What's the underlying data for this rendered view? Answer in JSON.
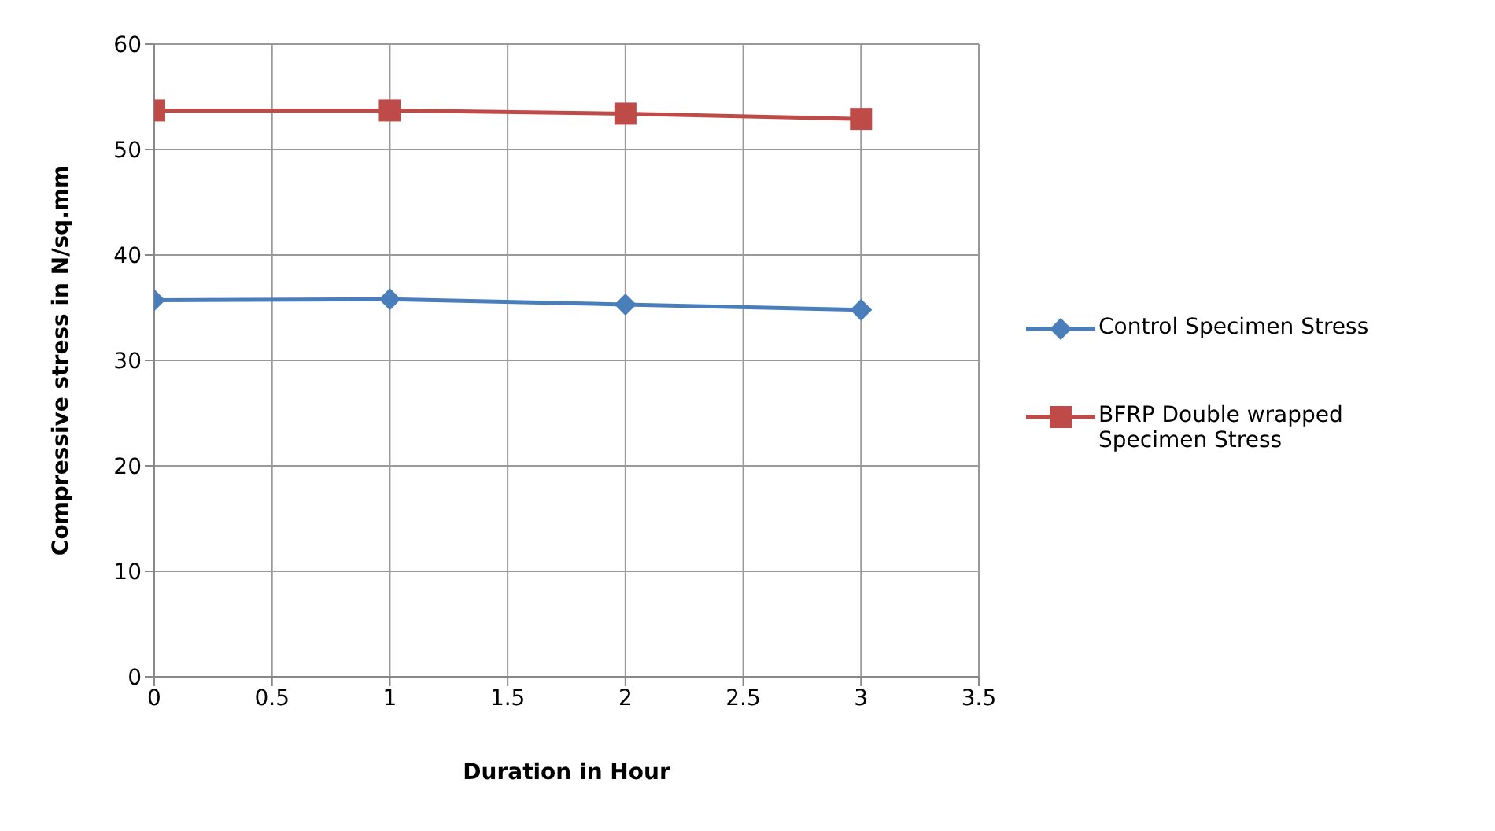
{
  "chart_data": {
    "type": "line",
    "xlabel": "Duration in Hour",
    "ylabel": "Compressive stress in N/sq.mm",
    "x": [
      0,
      1,
      2,
      3
    ],
    "series": [
      {
        "name": "Control Specimen Stress",
        "color": "#4a7ebb",
        "values": [
          35.7,
          35.8,
          35.3,
          34.8
        ],
        "marker": "diamond"
      },
      {
        "name": "BFRP Double wrapped Specimen Stress",
        "color": "#be4b48",
        "values": [
          53.7,
          53.7,
          53.4,
          52.9
        ],
        "marker": "square"
      }
    ],
    "xlim": [
      0,
      3.5
    ],
    "xticks": [
      0,
      0.5,
      1,
      1.5,
      2,
      2.5,
      3,
      3.5
    ],
    "ylim": [
      0,
      60
    ],
    "yticks": [
      0,
      10,
      20,
      30,
      40,
      50,
      60
    ],
    "grid": true,
    "legend": "right"
  }
}
